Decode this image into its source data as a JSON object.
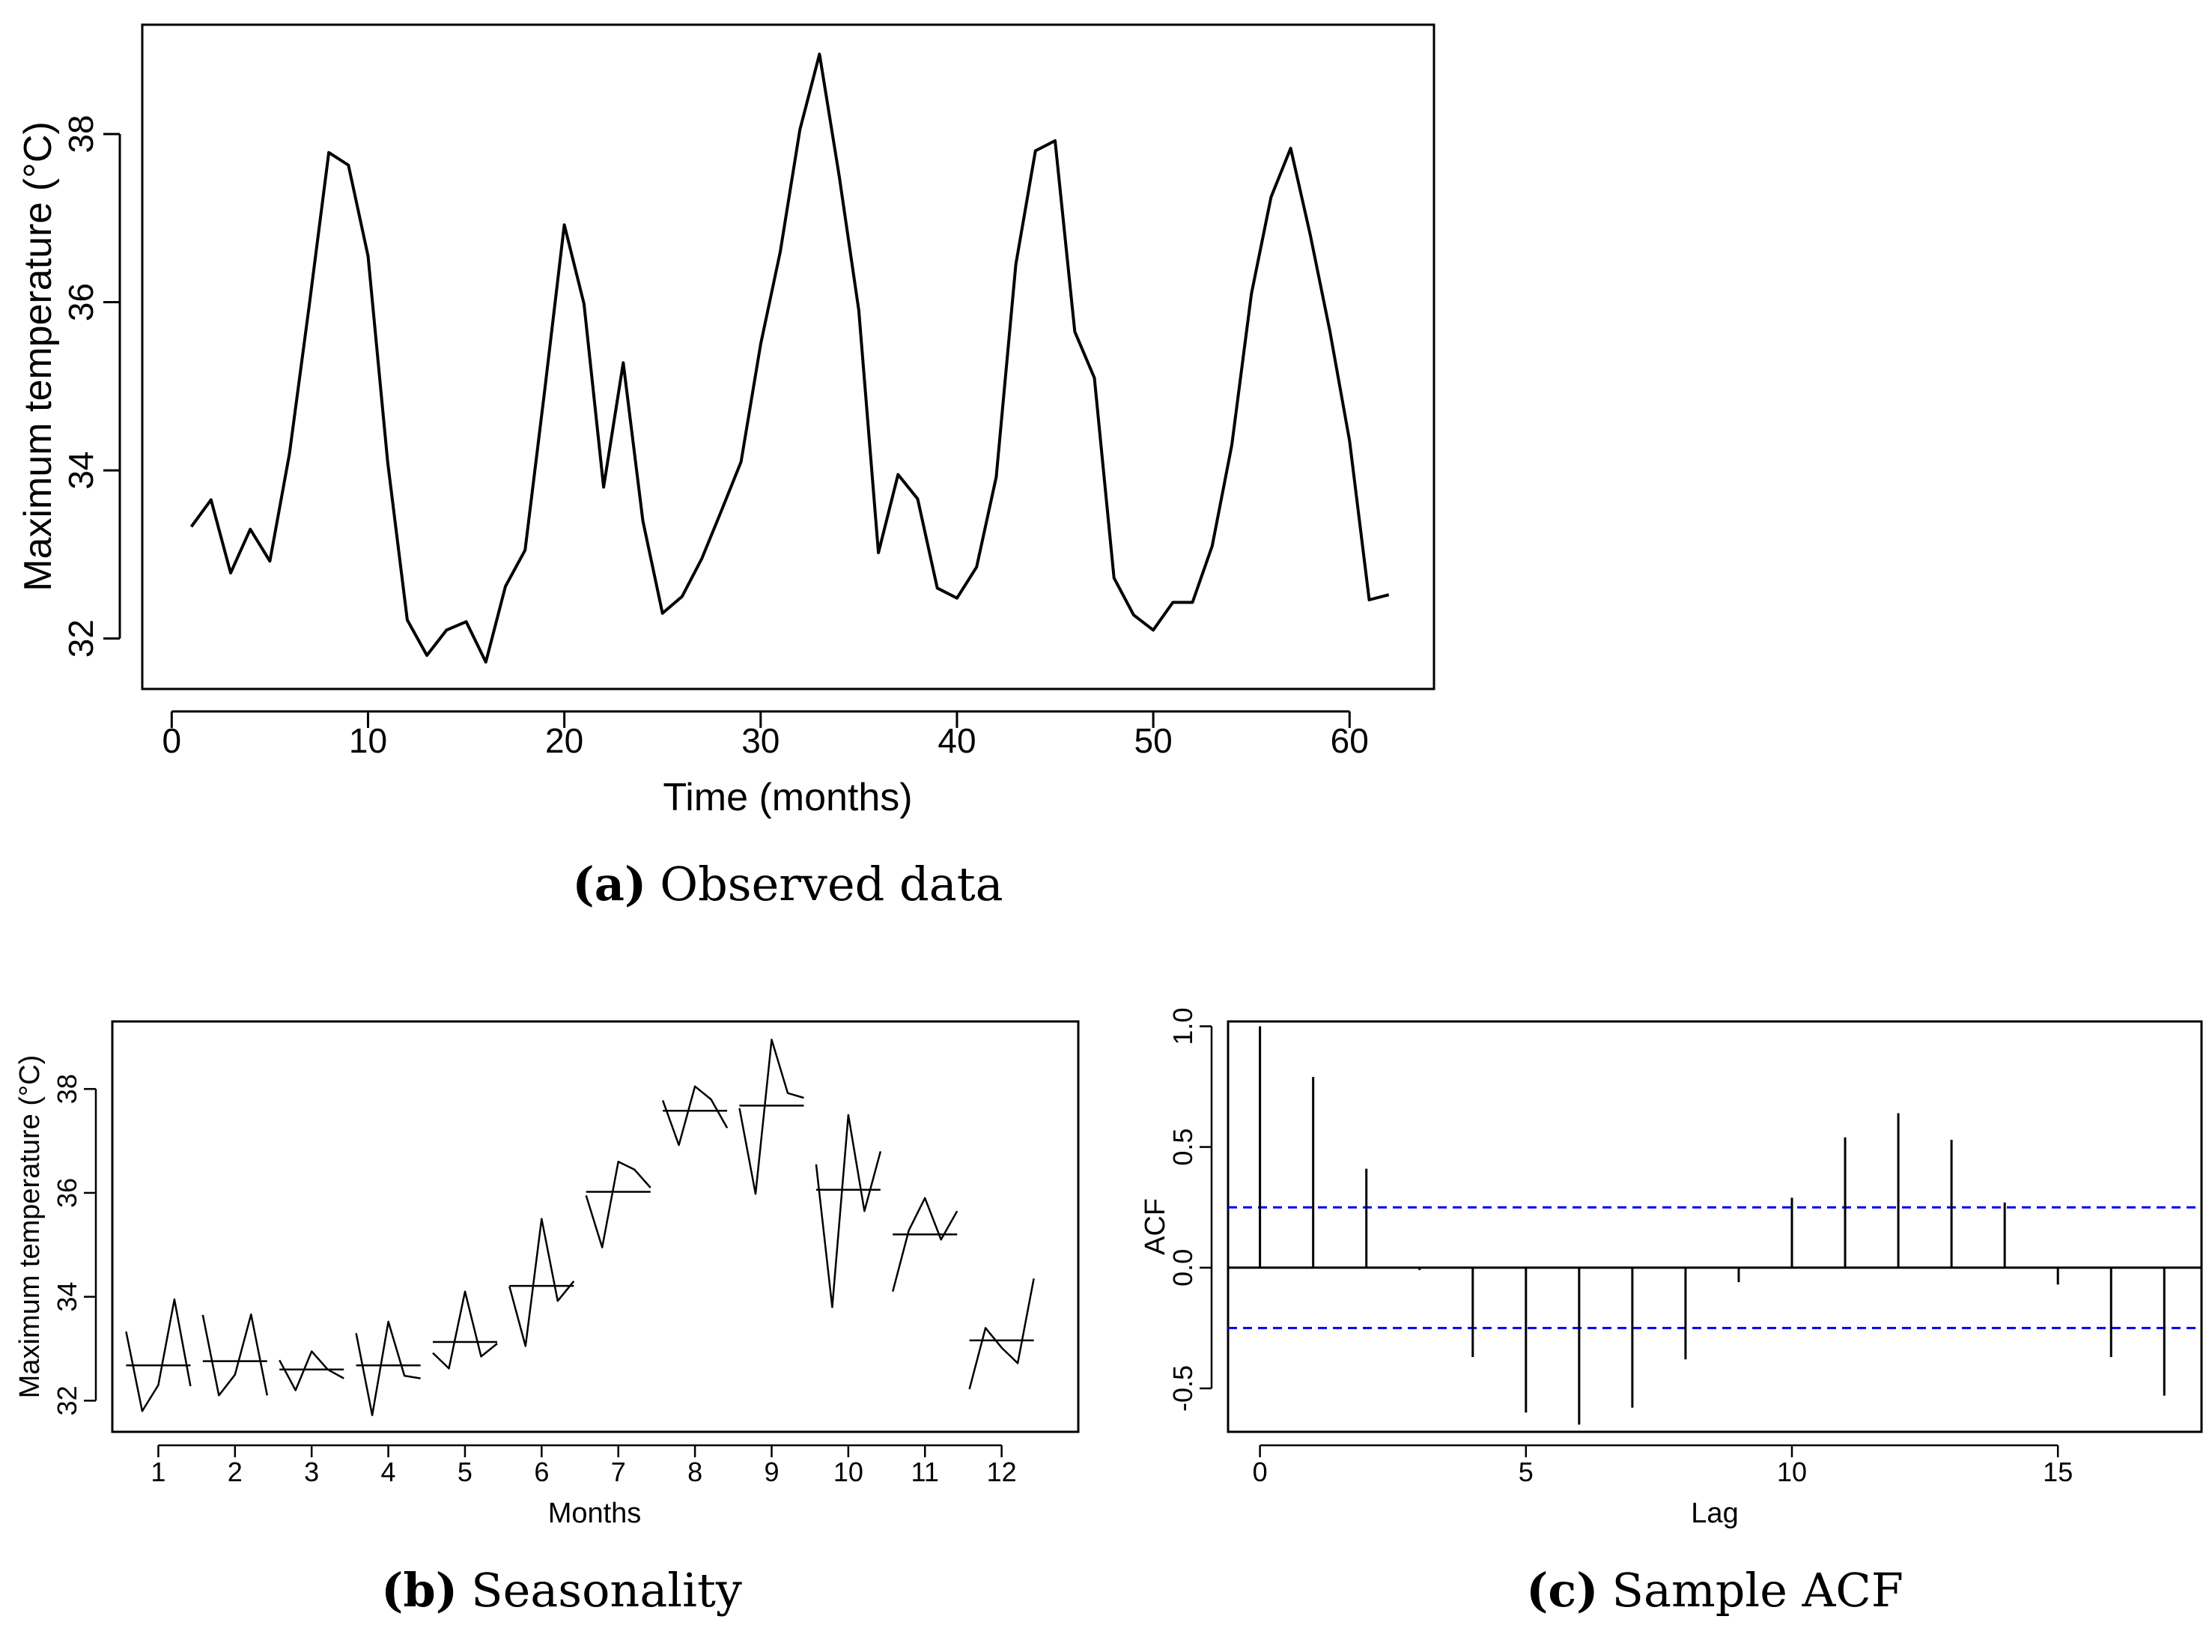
{
  "chart_data": [
    {
      "id": "a",
      "type": "line",
      "caption_label": "(a)",
      "caption_text": "Observed data",
      "xlabel": "Time (months)",
      "ylabel": "Maximum temperature (°C)",
      "xlim": [
        -1.5,
        64.3
      ],
      "ylim": [
        31.4,
        39.3
      ],
      "xticks": [
        0,
        10,
        20,
        30,
        40,
        50,
        60
      ],
      "yticks": [
        32,
        34,
        36,
        38
      ],
      "x": [
        1,
        2,
        3,
        4,
        5,
        6,
        7,
        8,
        9,
        10,
        11,
        12,
        13,
        14,
        15,
        16,
        17,
        18,
        19,
        20,
        21,
        22,
        23,
        24,
        25,
        26,
        27,
        28,
        29,
        30,
        31,
        32,
        33,
        34,
        35,
        36,
        37,
        38,
        39,
        40,
        41,
        42,
        43,
        44,
        45,
        46,
        47,
        48,
        49,
        50,
        51,
        52,
        53,
        54,
        55,
        56,
        57,
        58,
        59,
        60,
        61,
        62
      ],
      "values": [
        33.33,
        33.65,
        32.78,
        33.3,
        32.92,
        34.2,
        35.95,
        37.78,
        37.63,
        36.55,
        34.1,
        32.22,
        31.8,
        32.1,
        32.2,
        31.72,
        32.62,
        33.05,
        34.95,
        36.92,
        35.98,
        33.8,
        35.28,
        33.4,
        32.3,
        32.5,
        32.95,
        33.52,
        34.1,
        35.5,
        36.6,
        38.05,
        38.95,
        37.5,
        35.9,
        33.02,
        33.95,
        33.66,
        32.6,
        32.48,
        32.85,
        33.92,
        36.45,
        37.8,
        37.92,
        35.65,
        35.1,
        32.72,
        32.28,
        32.1,
        32.43,
        32.43,
        33.1,
        34.3,
        36.1,
        37.25,
        37.83,
        36.8,
        35.65,
        34.35,
        32.46,
        32.52
      ]
    },
    {
      "id": "b",
      "type": "line",
      "caption_label": "(b)",
      "caption_text": "Seasonality",
      "xlabel": "Months",
      "ylabel": "Maximum temperature (°C)",
      "xlim": [
        0.4,
        13.0
      ],
      "ylim": [
        31.4,
        39.3
      ],
      "xticks": [
        1,
        2,
        3,
        4,
        5,
        6,
        7,
        8,
        9,
        10,
        11,
        12
      ],
      "yticks": [
        32,
        34,
        36,
        38
      ],
      "months": [
        1,
        2,
        3,
        4,
        5,
        6,
        7,
        8,
        9,
        10,
        11,
        12
      ],
      "means": [
        32.68,
        32.76,
        32.6,
        32.68,
        33.13,
        34.21,
        36.02,
        37.58,
        37.68,
        36.06,
        35.2,
        33.16
      ],
      "series": [
        {
          "month": 1,
          "values": [
            33.33,
            31.8,
            32.3,
            33.95,
            32.28
          ]
        },
        {
          "month": 2,
          "values": [
            33.65,
            32.1,
            32.5,
            33.66,
            32.1
          ]
        },
        {
          "month": 3,
          "values": [
            32.78,
            32.2,
            32.95,
            32.6,
            32.43
          ]
        },
        {
          "month": 4,
          "values": [
            33.3,
            31.72,
            33.52,
            32.48,
            32.43
          ]
        },
        {
          "month": 5,
          "values": [
            32.92,
            32.62,
            34.1,
            32.85,
            33.1
          ]
        },
        {
          "month": 6,
          "values": [
            34.2,
            33.05,
            35.5,
            33.92,
            34.3
          ]
        },
        {
          "month": 7,
          "values": [
            35.95,
            34.95,
            36.6,
            36.45,
            36.1
          ]
        },
        {
          "month": 8,
          "values": [
            37.78,
            36.92,
            38.05,
            37.8,
            37.25
          ]
        },
        {
          "month": 9,
          "values": [
            37.63,
            35.98,
            38.95,
            37.92,
            37.83
          ]
        },
        {
          "month": 10,
          "values": [
            36.55,
            33.8,
            37.5,
            35.65,
            36.8
          ]
        },
        {
          "month": 11,
          "values": [
            34.1,
            35.28,
            35.9,
            35.1,
            35.65
          ]
        },
        {
          "month": 12,
          "values": [
            32.22,
            33.4,
            33.02,
            32.72,
            34.35
          ]
        }
      ]
    },
    {
      "id": "c",
      "type": "bar",
      "caption_label": "(c)",
      "caption_text": "Sample ACF",
      "xlabel": "Lag",
      "ylabel": "ACF",
      "xlim": [
        -0.6,
        17.7
      ],
      "ylim": [
        -0.68,
        1.02
      ],
      "xticks": [
        0,
        5,
        10,
        15
      ],
      "yticks": [
        -0.5,
        0.0,
        0.5,
        1.0
      ],
      "ytick_labels": [
        "-0.5",
        "0.0",
        "0.5",
        "1.0"
      ],
      "lags": [
        0,
        1,
        2,
        3,
        4,
        5,
        6,
        7,
        8,
        9,
        10,
        11,
        12,
        13,
        14,
        15,
        16,
        17
      ],
      "values": [
        1.0,
        0.79,
        0.41,
        -0.01,
        -0.37,
        -0.6,
        -0.65,
        -0.58,
        -0.38,
        -0.06,
        0.29,
        0.54,
        0.64,
        0.53,
        0.27,
        -0.07,
        -0.37,
        -0.53
      ],
      "confidence_bound": 0.25,
      "confidence_color": "#0000ff"
    }
  ]
}
